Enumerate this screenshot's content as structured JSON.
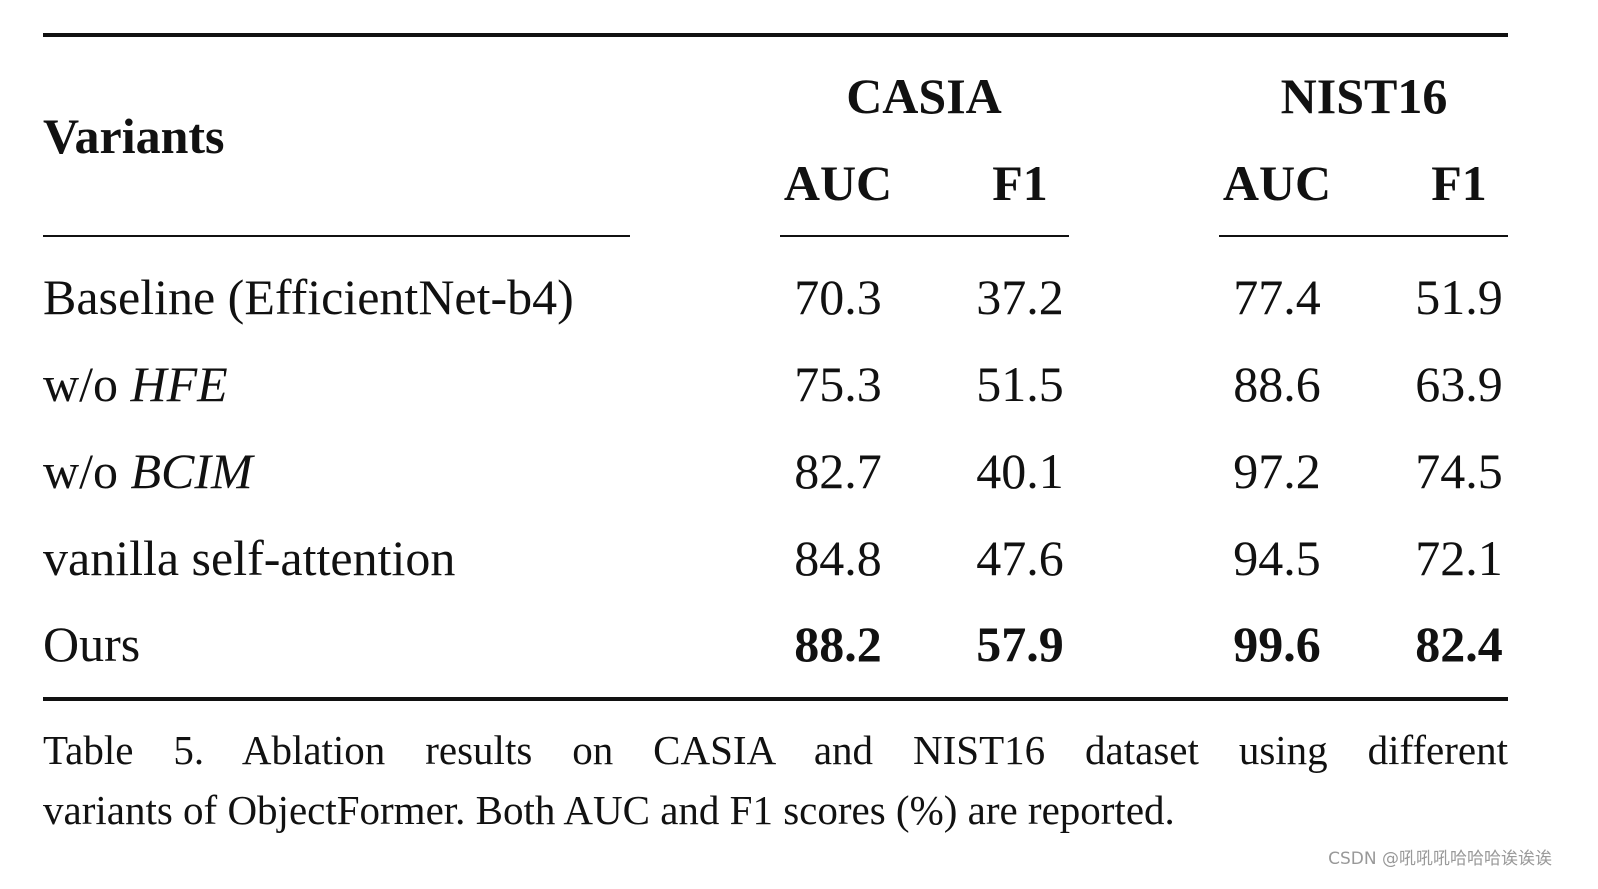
{
  "table": {
    "header": {
      "variants": "Variants",
      "groups": [
        "CASIA",
        "NIST16"
      ],
      "metrics": [
        "AUC",
        "F1",
        "AUC",
        "F1"
      ]
    },
    "rows": [
      {
        "prefix": "Baseline (EfficientNet-b4)",
        "italic": "",
        "values": [
          "70.3",
          "37.2",
          "77.4",
          "51.9"
        ],
        "bold": false
      },
      {
        "prefix": "w/o ",
        "italic": "HFE",
        "values": [
          "75.3",
          "51.5",
          "88.6",
          "63.9"
        ],
        "bold": false
      },
      {
        "prefix": "w/o ",
        "italic": "BCIM",
        "values": [
          "82.7",
          "40.1",
          "97.2",
          "74.5"
        ],
        "bold": false
      },
      {
        "prefix": "vanilla self-attention",
        "italic": "",
        "values": [
          "84.8",
          "47.6",
          "94.5",
          "72.1"
        ],
        "bold": false
      },
      {
        "prefix": "Ours",
        "italic": "",
        "values": [
          "88.2",
          "57.9",
          "99.6",
          "82.4"
        ],
        "bold": true
      }
    ]
  },
  "caption": {
    "line1": "Table 5.  Ablation results on CASIA and NIST16 dataset using different",
    "line2": "variants of ObjectFormer. Both AUC and F1 scores (%) are reported."
  },
  "watermark": "CSDN @吼吼吼哈哈哈诶诶诶"
}
